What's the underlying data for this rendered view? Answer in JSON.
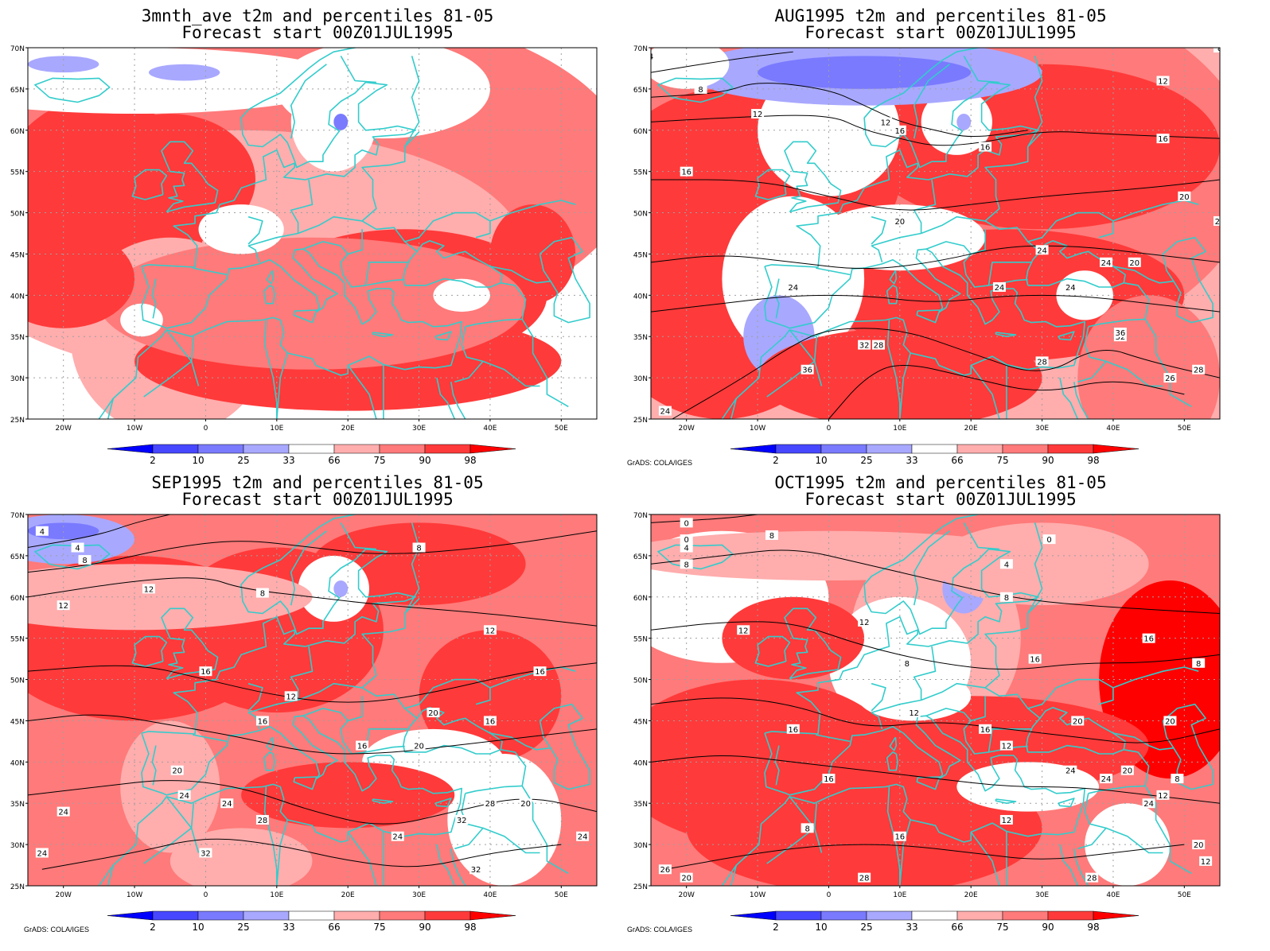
{
  "panels": [
    {
      "title_line1": "3mnth_ave t2m and percentiles 81-05",
      "title_line2": "Forecast start 00Z01JUL1995",
      "credit": "",
      "contour_labels": []
    },
    {
      "title_line1": "AUG1995 t2m and percentiles 81-05",
      "title_line2": "Forecast start 00Z01JUL1995",
      "credit": "GrADS: COLA/IGES",
      "contour_labels": [
        "4",
        "8",
        "8",
        "12",
        "12",
        "12",
        "16",
        "16",
        "16",
        "16",
        "20",
        "20",
        "20",
        "24",
        "24",
        "24",
        "24",
        "20",
        "24",
        "32",
        "36",
        "28",
        "26",
        "28",
        "32",
        "28",
        "36",
        "24"
      ]
    },
    {
      "title_line1": "SEP1995 t2m and percentiles 81-05",
      "title_line2": "Forecast start 00Z01JUL1995",
      "credit": "GrADS: COLA/IGES",
      "contour_labels": [
        "4",
        "4",
        "8",
        "8",
        "12",
        "8",
        "12",
        "12",
        "16",
        "16",
        "12",
        "16",
        "16",
        "20",
        "20",
        "16",
        "20",
        "24",
        "24",
        "24",
        "28",
        "28",
        "20",
        "24",
        "24",
        "32",
        "32",
        "32",
        "24"
      ]
    },
    {
      "title_line1": "OCT1995 t2m and percentiles 81-05",
      "title_line2": "Forecast start 00Z01JUL1995",
      "credit": "GrADS: COLA/IGES",
      "contour_labels": [
        "0",
        "0",
        "4",
        "8",
        "8",
        "0",
        "4",
        "8",
        "12",
        "12",
        "8",
        "16",
        "12",
        "16",
        "16",
        "20",
        "20",
        "20",
        "8",
        "12",
        "8",
        "16",
        "12",
        "16",
        "12",
        "16",
        "8",
        "12",
        "20",
        "24",
        "20",
        "24",
        "28",
        "28",
        "26",
        "24"
      ]
    }
  ],
  "map_axes": {
    "lat_labels": [
      "70N",
      "65N",
      "60N",
      "55N",
      "50N",
      "45N",
      "40N",
      "35N",
      "30N",
      "25N"
    ],
    "lon_labels": [
      "20W",
      "10W",
      "0",
      "10E",
      "20E",
      "30E",
      "40E",
      "50E"
    ]
  },
  "colorbar": {
    "labels": [
      "2",
      "10",
      "25",
      "33",
      "66",
      "75",
      "90",
      "98"
    ],
    "colors": [
      "#0000ff",
      "#4747ff",
      "#7a7aff",
      "#a8a8ff",
      "#ffffff",
      "#ffadad",
      "#ff7a7a",
      "#ff3a3a",
      "#ff0000"
    ]
  },
  "colors": {
    "coastline": "#33cccc",
    "contour": "#000000",
    "grid": "#a0a0a0"
  }
}
